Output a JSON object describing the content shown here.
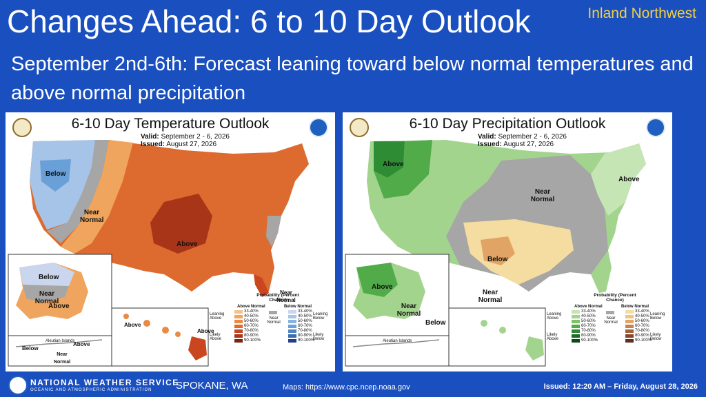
{
  "header": {
    "title": "Changes Ahead: 6 to 10 Day Outlook",
    "region": "Inland Northwest",
    "subtitle": "September 2nd-6th: Forecast leaning toward below normal temperatures and above normal precipitation"
  },
  "temp_map": {
    "title": "6-10 Day Temperature Outlook",
    "valid_label": "Valid:",
    "valid": "September 2 - 6, 2026",
    "issued_label": "Issued:",
    "issued": "August 27, 2026",
    "labels": {
      "below_main": "Below",
      "near_main": "Near Normal",
      "above_main": "Above",
      "near_east": "Near Normal",
      "ak_below": "Below",
      "ak_near": "Near Normal",
      "ak_above": "Above",
      "hi_above_w": "Above",
      "hi_above_e": "Above",
      "aleutian": "Aleutian Islands",
      "aleutian_above": "Above",
      "aleutian_below": "Below",
      "aleutian_near": "Near Normal"
    },
    "legend": {
      "title": "Probability (Percent Chance)",
      "left_head": "Above Normal",
      "right_head": "Below Normal",
      "leaning_left": "Leaning Above",
      "likely_left": "Likely Above",
      "center": "Near Normal",
      "leaning_right": "Leaning Below",
      "likely_right": "Likely Below",
      "ranges": [
        "33-40%",
        "40-50%",
        "50-60%",
        "60-70%",
        "70-80%",
        "80-90%",
        "90-100%"
      ],
      "left_colors": [
        "#f5c28a",
        "#f0a55e",
        "#ea8a45",
        "#dd6a2e",
        "#c9461f",
        "#a93518",
        "#7a2410"
      ],
      "right_colors": [
        "#c9d6ee",
        "#a6c3e8",
        "#86b2e0",
        "#6aa0d8",
        "#4f86c8",
        "#3b6cb0",
        "#243f86"
      ],
      "near_color": "#a6a6a6"
    }
  },
  "precip_map": {
    "title": "6-10 Day Precipitation Outlook",
    "valid_label": "Valid:",
    "valid": "September 2 - 6, 2026",
    "issued_label": "Issued:",
    "issued": "August 27, 2026",
    "labels": {
      "above_nw": "Above",
      "near_central": "Near Normal",
      "above_ne": "Above",
      "below_south": "Below",
      "near_south": "Near Normal",
      "ak_above": "Above",
      "ak_near": "Near Normal",
      "ak_below": "Below",
      "aleutian": "Aleutian Islands"
    },
    "legend": {
      "title": "Probability (Percent Chance)",
      "left_head": "Above Normal",
      "right_head": "Below Normal",
      "leaning_left": "Leaning Above",
      "likely_left": "Likely Above",
      "center": "Near Normal",
      "leaning_right": "Leaning Below",
      "likely_right": "Likely Below",
      "ranges": [
        "33-40%",
        "40-50%",
        "50-60%",
        "60-70%",
        "70-80%",
        "80-90%",
        "90-100%"
      ],
      "left_colors": [
        "#c6e5b5",
        "#a3d48e",
        "#7cc36b",
        "#52ab49",
        "#2e8c34",
        "#1f6a26",
        "#124716"
      ],
      "right_colors": [
        "#f5dca0",
        "#eec483",
        "#e1a465",
        "#c9824c",
        "#a8603a",
        "#87452c",
        "#5e2e1f"
      ],
      "near_color": "#a6a6a6"
    }
  },
  "footer": {
    "nws_name": "NATIONAL WEATHER SERVICE",
    "nws_sub": "OCEANIC AND ATMOSPHERIC ADMINISTRATION",
    "city": "SPOKANE, WA",
    "maps": "Maps: https://www.cpc.ncep.noaa.gov",
    "issued": "Issued: 12:20 AM – Friday, August 28, 2026"
  },
  "colors": {
    "background": "#1a4fbf",
    "region_text": "#f4d03f"
  }
}
